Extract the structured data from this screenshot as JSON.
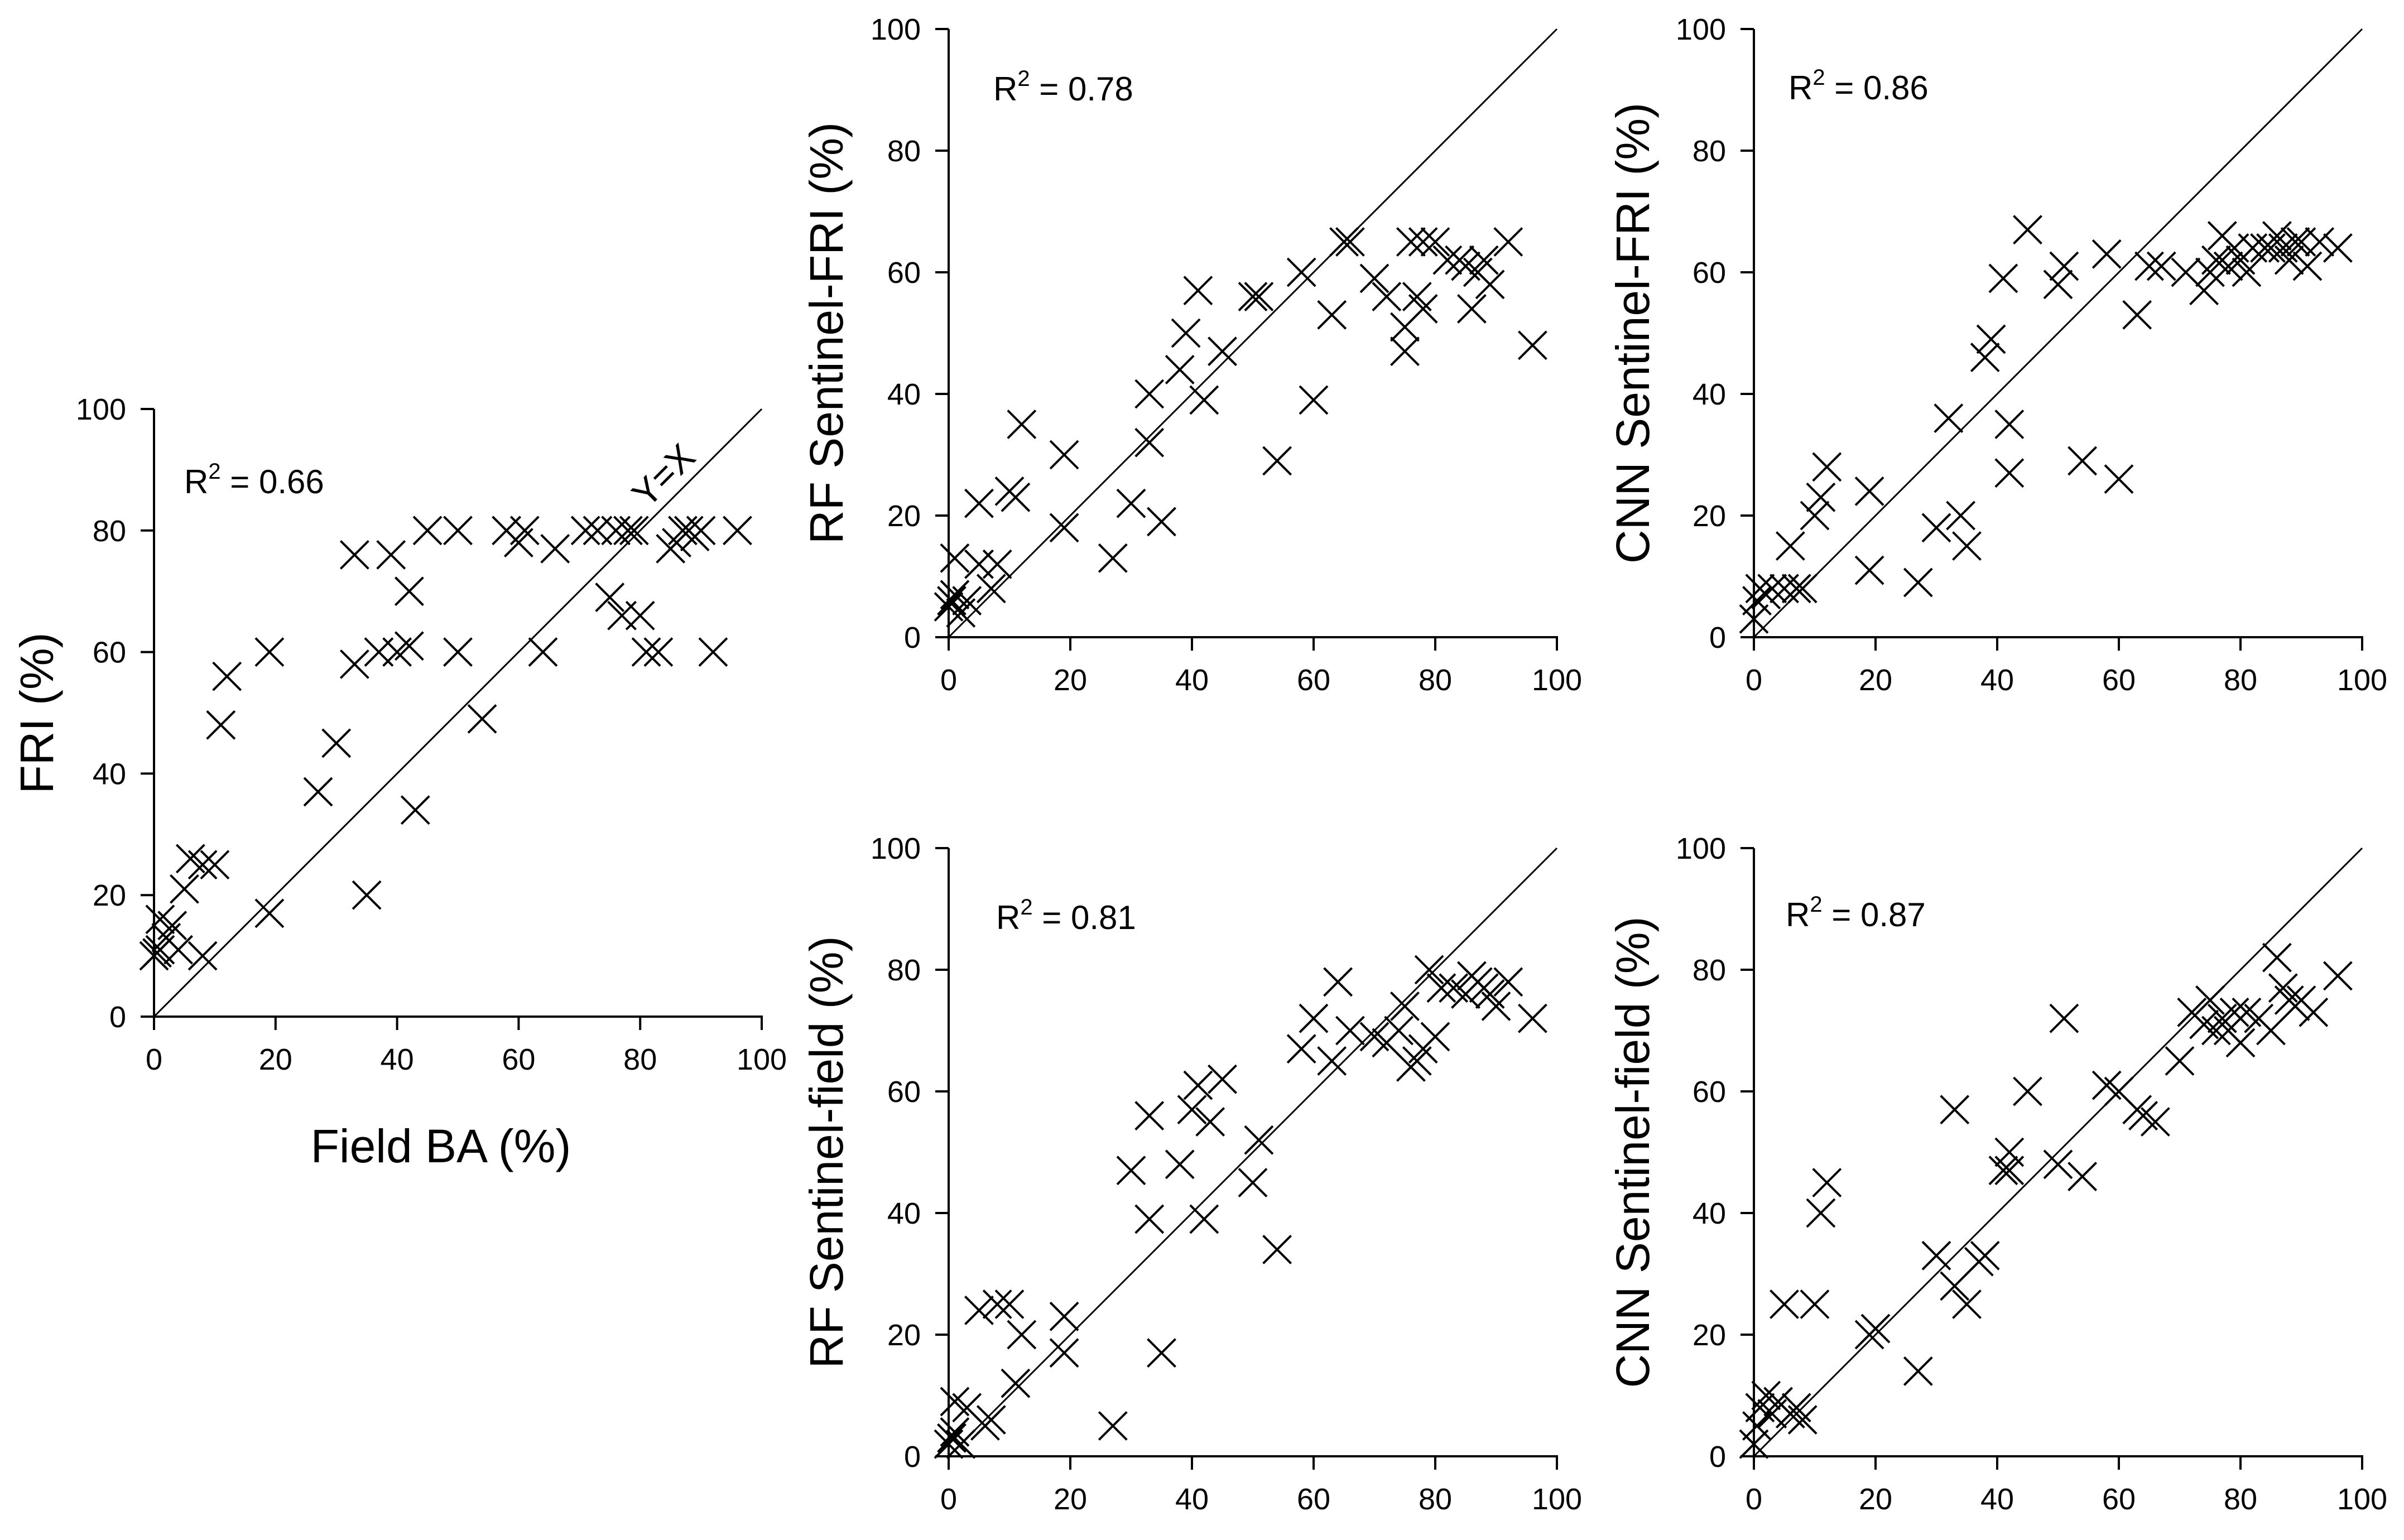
{
  "chart_data": [
    {
      "id": "fri",
      "type": "scatter",
      "title": "",
      "xlabel": "Field BA (%)",
      "ylabel": "FRI (%)",
      "xlim": [
        0,
        100
      ],
      "ylim": [
        0,
        100
      ],
      "xticks": [
        "0",
        "20",
        "40",
        "60",
        "80",
        "100"
      ],
      "yticks": [
        "0",
        "20",
        "40",
        "60",
        "80",
        "100"
      ],
      "r2_prefix": "R",
      "r2_exp": "2",
      "r2_value": " = 0.66",
      "reference_line": "Y=X",
      "marker": "x",
      "points": [
        [
          0,
          10
        ],
        [
          0.5,
          10.5
        ],
        [
          1,
          11
        ],
        [
          1,
          16
        ],
        [
          2,
          13
        ],
        [
          3,
          15
        ],
        [
          4,
          11
        ],
        [
          5,
          21
        ],
        [
          6,
          26
        ],
        [
          8,
          10
        ],
        [
          8,
          25
        ],
        [
          10,
          25
        ],
        [
          11,
          48
        ],
        [
          12,
          56
        ],
        [
          19,
          17
        ],
        [
          19,
          60
        ],
        [
          27,
          37
        ],
        [
          30,
          45
        ],
        [
          33,
          76
        ],
        [
          33,
          58
        ],
        [
          35,
          20
        ],
        [
          37,
          60
        ],
        [
          39,
          76
        ],
        [
          40,
          60
        ],
        [
          42,
          70
        ],
        [
          42,
          61
        ],
        [
          43,
          34
        ],
        [
          45,
          80
        ],
        [
          50,
          80
        ],
        [
          50,
          60
        ],
        [
          54,
          49
        ],
        [
          58,
          80
        ],
        [
          60,
          78
        ],
        [
          61,
          80
        ],
        [
          64,
          60
        ],
        [
          66,
          77
        ],
        [
          71,
          80
        ],
        [
          73,
          80
        ],
        [
          75,
          69
        ],
        [
          76,
          80
        ],
        [
          77,
          66
        ],
        [
          78,
          80
        ],
        [
          79,
          80
        ],
        [
          80,
          66
        ],
        [
          81,
          60
        ],
        [
          83,
          60
        ],
        [
          85,
          77
        ],
        [
          86,
          78
        ],
        [
          87,
          80
        ],
        [
          88,
          80
        ],
        [
          89,
          79
        ],
        [
          90,
          80
        ],
        [
          92,
          60
        ],
        [
          96,
          80
        ]
      ]
    },
    {
      "id": "rf-fri",
      "type": "scatter",
      "title": "",
      "xlabel": "",
      "ylabel": "RF Sentinel-FRI (%)",
      "xlim": [
        0,
        100
      ],
      "ylim": [
        0,
        100
      ],
      "xticks": [
        "0",
        "20",
        "40",
        "60",
        "80",
        "100"
      ],
      "yticks": [
        "0",
        "20",
        "40",
        "60",
        "80",
        "100"
      ],
      "r2_prefix": "R",
      "r2_exp": "2",
      "r2_value": " = 0.78",
      "reference_line": "",
      "marker": "x",
      "points": [
        [
          0,
          5
        ],
        [
          0.5,
          6
        ],
        [
          1,
          7
        ],
        [
          1,
          13
        ],
        [
          2,
          4
        ],
        [
          3,
          6
        ],
        [
          5,
          22
        ],
        [
          5,
          12
        ],
        [
          7,
          8
        ],
        [
          8,
          12
        ],
        [
          10,
          24
        ],
        [
          11,
          23
        ],
        [
          12,
          35
        ],
        [
          19,
          30
        ],
        [
          19,
          18
        ],
        [
          27,
          13
        ],
        [
          30,
          22
        ],
        [
          33,
          40
        ],
        [
          33,
          32
        ],
        [
          35,
          19
        ],
        [
          38,
          44
        ],
        [
          39,
          50
        ],
        [
          41,
          57
        ],
        [
          42,
          39
        ],
        [
          45,
          47
        ],
        [
          50,
          56
        ],
        [
          51,
          56
        ],
        [
          54,
          29
        ],
        [
          58,
          60
        ],
        [
          60,
          39
        ],
        [
          63,
          53
        ],
        [
          65,
          65
        ],
        [
          66,
          65
        ],
        [
          70,
          59
        ],
        [
          72,
          56
        ],
        [
          75,
          51
        ],
        [
          75,
          47
        ],
        [
          76,
          65
        ],
        [
          77,
          56
        ],
        [
          78,
          54
        ],
        [
          78,
          65
        ],
        [
          80,
          65
        ],
        [
          82,
          62
        ],
        [
          84,
          62
        ],
        [
          85,
          61
        ],
        [
          86,
          54
        ],
        [
          87,
          60
        ],
        [
          88,
          62
        ],
        [
          89,
          58
        ],
        [
          92,
          65
        ],
        [
          96,
          48
        ]
      ]
    },
    {
      "id": "cnn-fri",
      "type": "scatter",
      "title": "",
      "xlabel": "",
      "ylabel": "CNN Sentinel-FRI (%)",
      "xlim": [
        0,
        100
      ],
      "ylim": [
        0,
        100
      ],
      "xticks": [
        "0",
        "20",
        "40",
        "60",
        "80",
        "100"
      ],
      "yticks": [
        "0",
        "20",
        "40",
        "60",
        "80",
        "100"
      ],
      "r2_prefix": "R",
      "r2_exp": "2",
      "r2_value": " = 0.86",
      "reference_line": "",
      "marker": "x",
      "points": [
        [
          0,
          3
        ],
        [
          0.5,
          6
        ],
        [
          1,
          8
        ],
        [
          2,
          7
        ],
        [
          3,
          8
        ],
        [
          5,
          8
        ],
        [
          6,
          15
        ],
        [
          7,
          8
        ],
        [
          8,
          8
        ],
        [
          10,
          20
        ],
        [
          11,
          23
        ],
        [
          12,
          28
        ],
        [
          19,
          24
        ],
        [
          19,
          11
        ],
        [
          27,
          9
        ],
        [
          30,
          18
        ],
        [
          32,
          36
        ],
        [
          34,
          20
        ],
        [
          35,
          15
        ],
        [
          38,
          46
        ],
        [
          39,
          49
        ],
        [
          41,
          59
        ],
        [
          42,
          35
        ],
        [
          42,
          27
        ],
        [
          45,
          67
        ],
        [
          50,
          58
        ],
        [
          51,
          61
        ],
        [
          54,
          29
        ],
        [
          58,
          63
        ],
        [
          60,
          26
        ],
        [
          63,
          53
        ],
        [
          65,
          61
        ],
        [
          67,
          61
        ],
        [
          71,
          60
        ],
        [
          74,
          57
        ],
        [
          75,
          60
        ],
        [
          76,
          62
        ],
        [
          77,
          66
        ],
        [
          78,
          61
        ],
        [
          79,
          64
        ],
        [
          80,
          62
        ],
        [
          81,
          60
        ],
        [
          82,
          64
        ],
        [
          84,
          64
        ],
        [
          85,
          64
        ],
        [
          86,
          66
        ],
        [
          87,
          64
        ],
        [
          88,
          62
        ],
        [
          89,
          65
        ],
        [
          90,
          65
        ],
        [
          91,
          61
        ],
        [
          93,
          65
        ],
        [
          96,
          64
        ]
      ]
    },
    {
      "id": "rf-field",
      "type": "scatter",
      "title": "",
      "xlabel": "",
      "ylabel": "RF Sentinel-field (%)",
      "xlim": [
        0,
        100
      ],
      "ylim": [
        0,
        100
      ],
      "xticks": [
        "0",
        "20",
        "40",
        "60",
        "80",
        "100"
      ],
      "yticks": [
        "0",
        "20",
        "40",
        "60",
        "80",
        "100"
      ],
      "r2_prefix": "R",
      "r2_exp": "2",
      "r2_value": " = 0.81",
      "reference_line": "",
      "marker": "x",
      "points": [
        [
          0,
          2
        ],
        [
          0.5,
          3
        ],
        [
          1,
          4
        ],
        [
          1,
          9
        ],
        [
          2,
          2
        ],
        [
          3,
          8
        ],
        [
          5,
          24
        ],
        [
          6,
          5
        ],
        [
          7,
          6
        ],
        [
          8,
          25
        ],
        [
          10,
          25
        ],
        [
          11,
          12
        ],
        [
          12,
          20
        ],
        [
          19,
          23
        ],
        [
          19,
          17
        ],
        [
          27,
          5
        ],
        [
          30,
          47
        ],
        [
          33,
          56
        ],
        [
          33,
          39
        ],
        [
          35,
          17
        ],
        [
          38,
          48
        ],
        [
          40,
          57
        ],
        [
          41,
          61
        ],
        [
          42,
          39
        ],
        [
          43,
          55
        ],
        [
          45,
          62
        ],
        [
          50,
          45
        ],
        [
          51,
          52
        ],
        [
          54,
          34
        ],
        [
          58,
          67
        ],
        [
          60,
          72
        ],
        [
          63,
          65
        ],
        [
          64,
          78
        ],
        [
          66,
          70
        ],
        [
          70,
          69
        ],
        [
          72,
          68
        ],
        [
          74,
          70
        ],
        [
          75,
          74
        ],
        [
          76,
          64
        ],
        [
          77,
          65
        ],
        [
          78,
          67
        ],
        [
          79,
          80
        ],
        [
          80,
          69
        ],
        [
          81,
          77
        ],
        [
          83,
          77
        ],
        [
          85,
          76
        ],
        [
          86,
          79
        ],
        [
          87,
          78
        ],
        [
          88,
          77
        ],
        [
          89,
          76
        ],
        [
          90,
          74
        ],
        [
          92,
          78
        ],
        [
          96,
          72
        ]
      ]
    },
    {
      "id": "cnn-field",
      "type": "scatter",
      "title": "",
      "xlabel": "",
      "ylabel": "CNN Sentinel-field (%)",
      "xlim": [
        0,
        100
      ],
      "ylim": [
        0,
        100
      ],
      "xticks": [
        "0",
        "20",
        "40",
        "60",
        "80",
        "100"
      ],
      "yticks": [
        "0",
        "20",
        "40",
        "60",
        "80",
        "100"
      ],
      "r2_prefix": "R",
      "r2_exp": "2",
      "r2_value": " = 0.87",
      "reference_line": "",
      "marker": "x",
      "points": [
        [
          0,
          2
        ],
        [
          0.5,
          5
        ],
        [
          1,
          8
        ],
        [
          2,
          10
        ],
        [
          3,
          7
        ],
        [
          4,
          9
        ],
        [
          5,
          25
        ],
        [
          6,
          7
        ],
        [
          7,
          8
        ],
        [
          8,
          6
        ],
        [
          10,
          25
        ],
        [
          11,
          40
        ],
        [
          12,
          45
        ],
        [
          19,
          20
        ],
        [
          20,
          21
        ],
        [
          27,
          14
        ],
        [
          30,
          33
        ],
        [
          33,
          57
        ],
        [
          33,
          28
        ],
        [
          35,
          25
        ],
        [
          37,
          32
        ],
        [
          38,
          33
        ],
        [
          41,
          47
        ],
        [
          42,
          50
        ],
        [
          42,
          47
        ],
        [
          45,
          60
        ],
        [
          50,
          48
        ],
        [
          51,
          72
        ],
        [
          54,
          46
        ],
        [
          58,
          61
        ],
        [
          60,
          60
        ],
        [
          63,
          57
        ],
        [
          64,
          56
        ],
        [
          66,
          55
        ],
        [
          70,
          65
        ],
        [
          72,
          73
        ],
        [
          74,
          71
        ],
        [
          75,
          75
        ],
        [
          76,
          70
        ],
        [
          77,
          72
        ],
        [
          78,
          70
        ],
        [
          79,
          73
        ],
        [
          80,
          68
        ],
        [
          81,
          73
        ],
        [
          83,
          72
        ],
        [
          85,
          70
        ],
        [
          86,
          82
        ],
        [
          87,
          77
        ],
        [
          88,
          75
        ],
        [
          89,
          74
        ],
        [
          90,
          75
        ],
        [
          92,
          73
        ],
        [
          96,
          79
        ]
      ]
    }
  ]
}
